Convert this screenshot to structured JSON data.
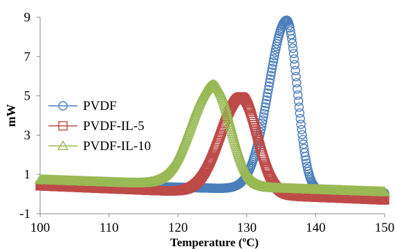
{
  "chart_data": {
    "type": "scatter",
    "title": "",
    "xlabel": "Temperature (ºC)",
    "ylabel": "mW",
    "xlim": [
      100,
      150
    ],
    "ylim": [
      -1,
      9
    ],
    "xticks": [
      "100",
      "110",
      "120",
      "130",
      "140",
      "150"
    ],
    "yticks": [
      "-1",
      "1",
      "3",
      "5",
      "7",
      "9"
    ],
    "grid": false,
    "legend_position": "left",
    "series": [
      {
        "name": "PVDF",
        "color": "#4a7ebb",
        "marker": "circle",
        "baseline_start": 0.55,
        "baseline_end": 0.05,
        "peak_x": 135.8,
        "peak_y": 8.85,
        "sigma_left": 2.6,
        "sigma_right": 1.5
      },
      {
        "name": "PVDF-IL-5",
        "color": "#be4b48",
        "marker": "square",
        "baseline_start": 0.42,
        "baseline_end": -0.3,
        "peak_x": 129.2,
        "peak_y": 4.95,
        "sigma_left": 3.0,
        "sigma_right": 2.3
      },
      {
        "name": "PVDF-IL-10",
        "color": "#98b954",
        "marker": "triangle",
        "baseline_start": 0.72,
        "baseline_end": 0.1,
        "peak_x": 125.2,
        "peak_y": 5.55,
        "sigma_left": 3.2,
        "sigma_right": 2.4
      }
    ]
  }
}
